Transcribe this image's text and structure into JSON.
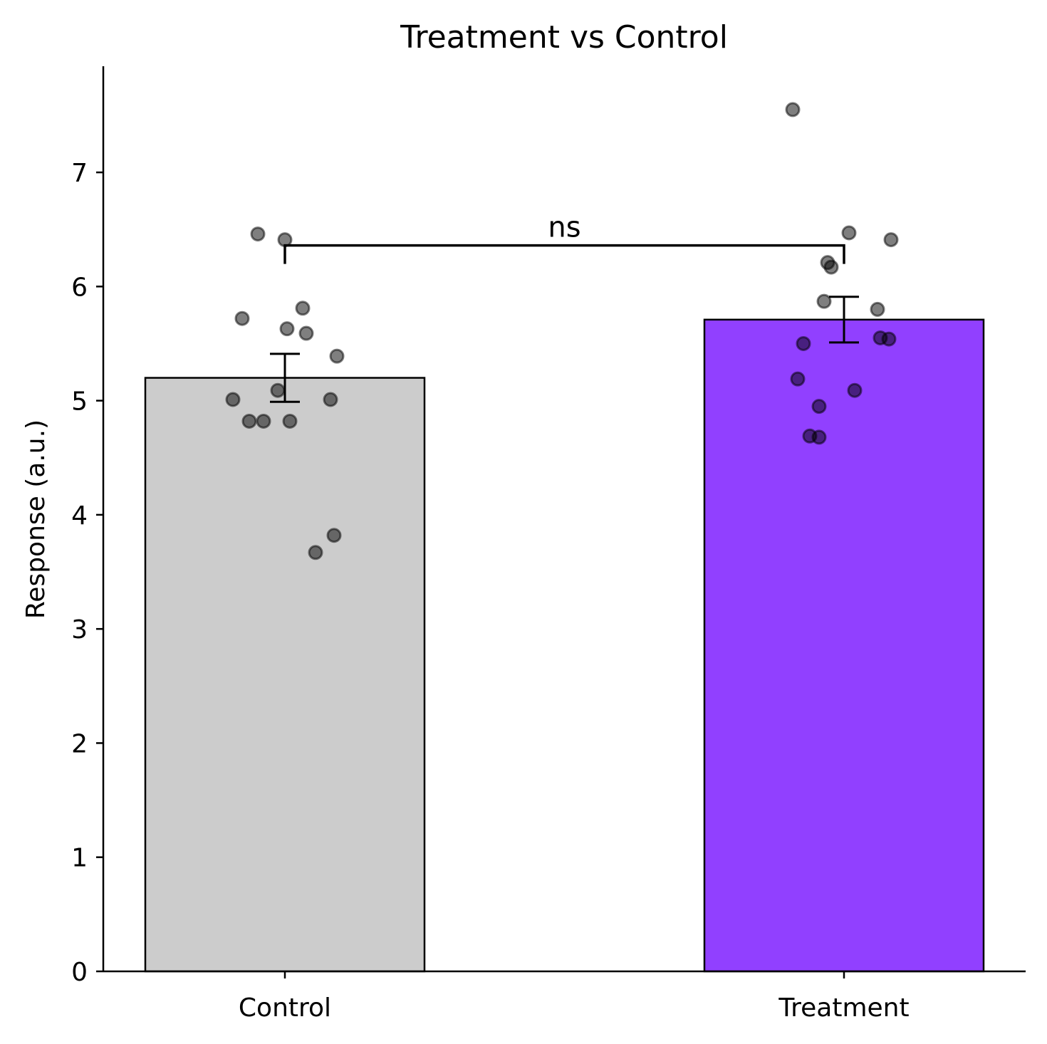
{
  "chart_data": {
    "type": "bar",
    "title": "Treatment vs Control",
    "xlabel": "",
    "ylabel": "Response (a.u.)",
    "categories": [
      "Control",
      "Treatment"
    ],
    "values": [
      5.2,
      5.71
    ],
    "error": [
      0.21,
      0.2
    ],
    "bar_colors": [
      "#cccccc",
      "#9140ff"
    ],
    "ylim": [
      0,
      7.93
    ],
    "yticks": [
      0,
      1,
      2,
      3,
      4,
      5,
      6,
      7
    ],
    "ytick_labels": [
      "0",
      "1",
      "2",
      "3",
      "4",
      "5",
      "6",
      "7"
    ],
    "points": [
      [
        6.46,
        6.41,
        5.72,
        5.81,
        5.63,
        5.59,
        5.39,
        5.09,
        5.01,
        5.01,
        4.82,
        4.82,
        4.82,
        3.82,
        3.67
      ],
      [
        7.55,
        6.47,
        6.41,
        6.21,
        6.17,
        5.87,
        5.8,
        5.55,
        5.54,
        5.5,
        5.19,
        5.09,
        4.95,
        4.69,
        4.68
      ]
    ],
    "point_color": "#000000",
    "significance": {
      "label": "ns",
      "y": 6.36
    },
    "grid": false,
    "legend": "none"
  }
}
